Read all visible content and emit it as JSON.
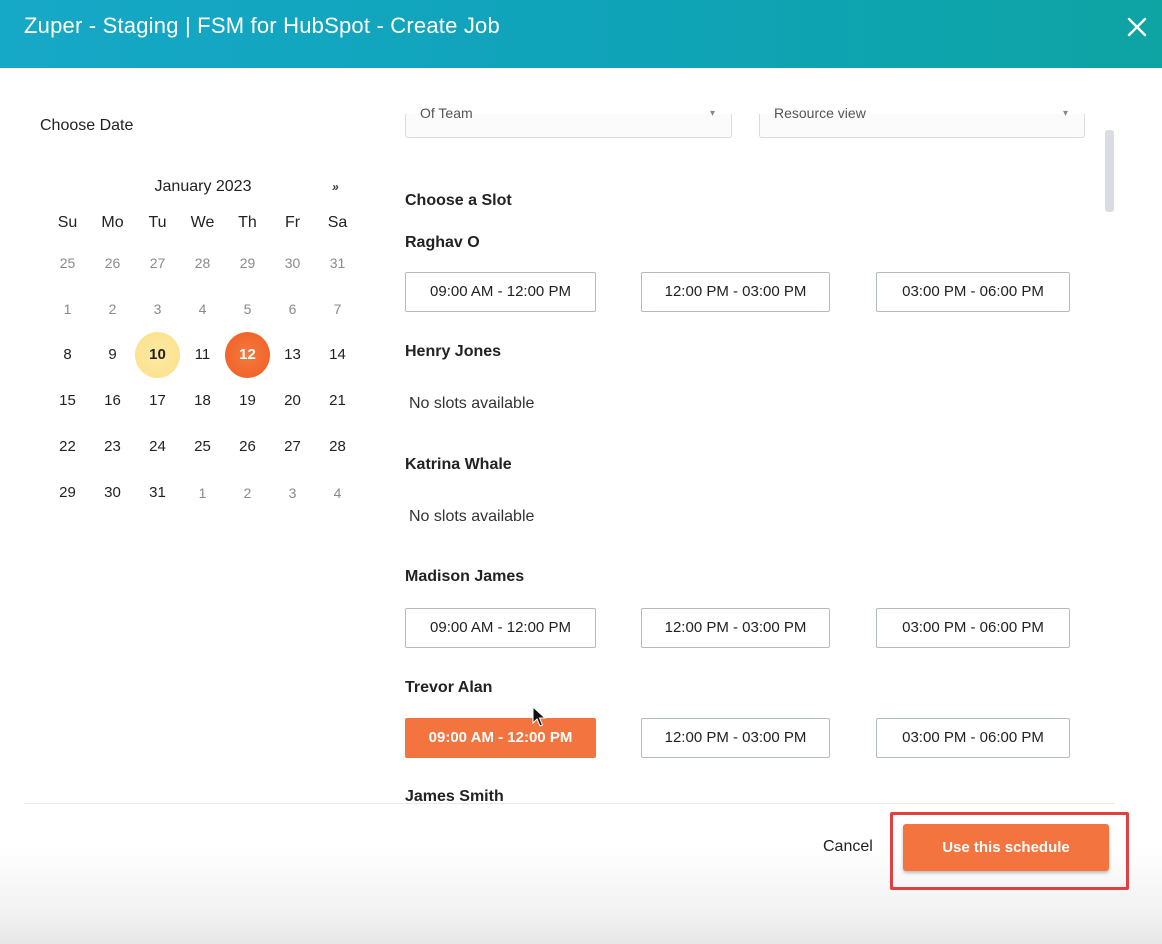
{
  "header": {
    "title": "Zuper - Staging | FSM for HubSpot - Create Job",
    "close_icon": "close-icon"
  },
  "calendar": {
    "choose_date_label": "Choose Date",
    "month_label": "January 2023",
    "next_icon": "»",
    "weekdays": [
      "Su",
      "Mo",
      "Tu",
      "We",
      "Th",
      "Fr",
      "Sa"
    ],
    "weeks": [
      [
        "25",
        "26",
        "27",
        "28",
        "29",
        "30",
        "31"
      ],
      [
        "1",
        "2",
        "3",
        "4",
        "5",
        "6",
        "7"
      ],
      [
        "8",
        "9",
        "10",
        "11",
        "12",
        "13",
        "14"
      ],
      [
        "15",
        "16",
        "17",
        "18",
        "19",
        "20",
        "21"
      ],
      [
        "22",
        "23",
        "24",
        "25",
        "26",
        "27",
        "28"
      ],
      [
        "29",
        "30",
        "31",
        "1",
        "2",
        "3",
        "4"
      ]
    ],
    "today": "10",
    "selected": "12"
  },
  "filters": {
    "team_select": "Of Team",
    "view_select": "Resource view"
  },
  "slots": {
    "title": "Choose a Slot",
    "no_slots_text": "No slots available",
    "people": [
      {
        "name": "Raghav O",
        "slots": [
          "09:00 AM - 12:00 PM",
          "12:00 PM - 03:00 PM",
          "03:00 PM - 06:00 PM"
        ]
      },
      {
        "name": "Henry Jones",
        "slots": []
      },
      {
        "name": "Katrina Whale",
        "slots": []
      },
      {
        "name": "Madison James",
        "slots": [
          "09:00 AM - 12:00 PM",
          "12:00 PM - 03:00 PM",
          "03:00 PM - 06:00 PM"
        ]
      },
      {
        "name": "Trevor Alan",
        "slots": [
          "09:00 AM - 12:00 PM",
          "12:00 PM - 03:00 PM",
          "03:00 PM - 06:00 PM"
        ],
        "selected_slot": "09:00 AM - 12:00 PM"
      },
      {
        "name": "James Smith",
        "slots": []
      }
    ]
  },
  "footer": {
    "cancel_label": "Cancel",
    "use_schedule_label": "Use this schedule"
  },
  "colors": {
    "accent": "#f3743e",
    "header_start": "#16a8c7",
    "header_end": "#0ea4a4",
    "today_bg": "#fbe08a",
    "highlight_border": "#e0403f"
  }
}
